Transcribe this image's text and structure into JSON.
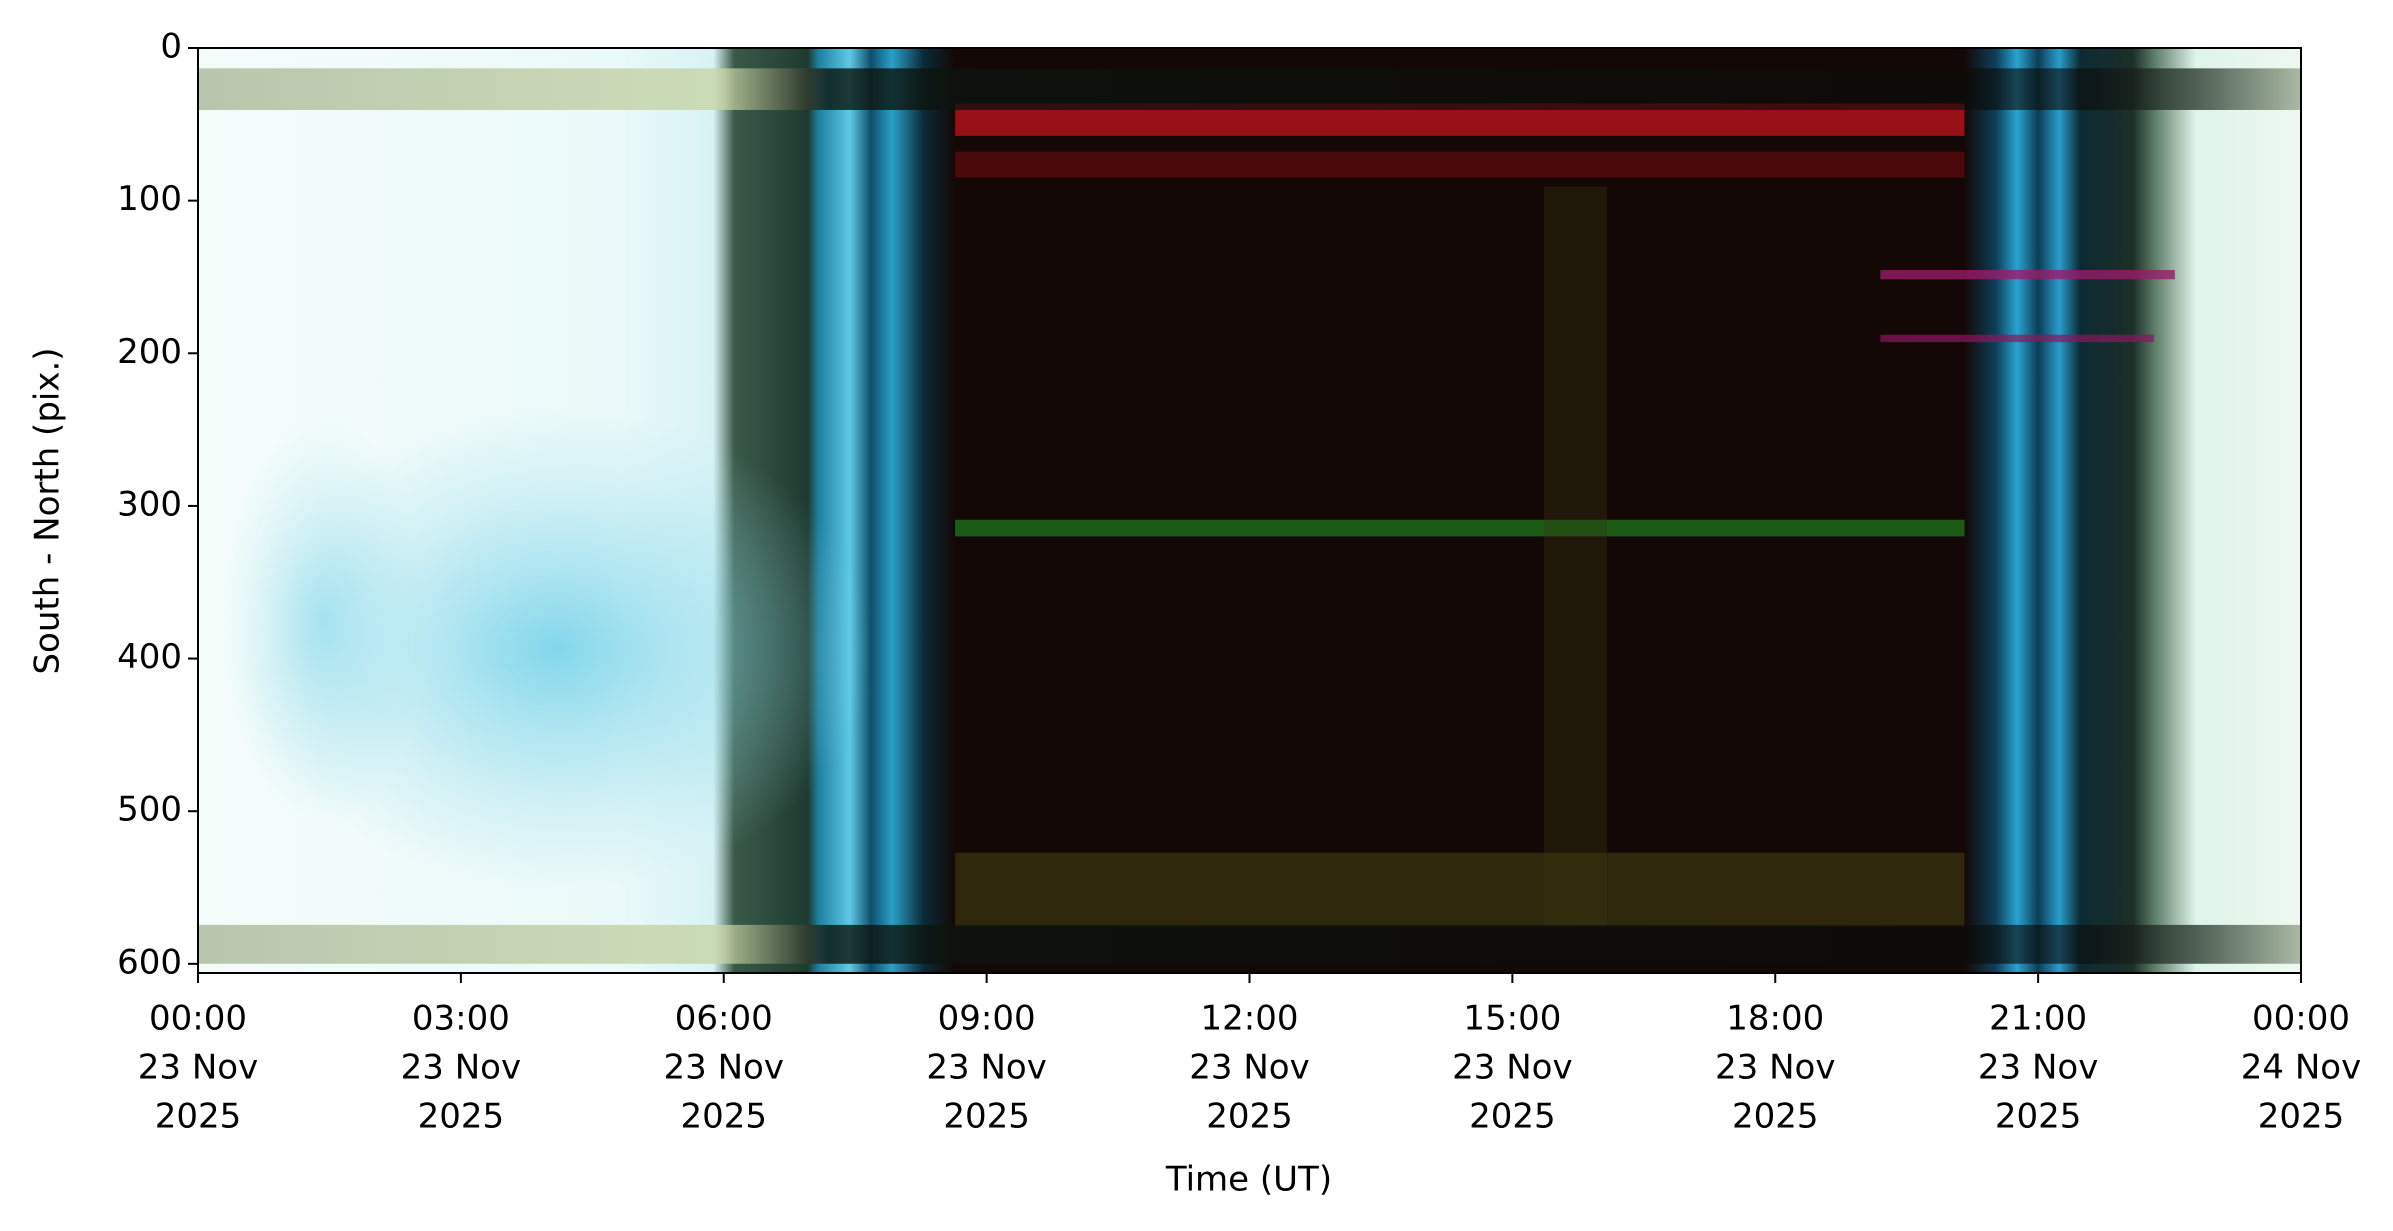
{
  "chart_data": {
    "type": "keogram",
    "ylabel": "South - North (pix.)",
    "xlabel": "Time (UT)",
    "ylim": [
      0,
      606
    ],
    "y_inverted": true,
    "yticks": [
      0,
      100,
      200,
      300,
      400,
      500,
      600
    ],
    "xlim": [
      "2025-11-23T00:00",
      "2025-11-24T00:00"
    ],
    "xticks": [
      {
        "value": "2025-11-23T00:00",
        "label": [
          "00:00",
          "23 Nov",
          "2025"
        ]
      },
      {
        "value": "2025-11-23T03:00",
        "label": [
          "03:00",
          "23 Nov",
          "2025"
        ]
      },
      {
        "value": "2025-11-23T06:00",
        "label": [
          "06:00",
          "23 Nov",
          "2025"
        ]
      },
      {
        "value": "2025-11-23T09:00",
        "label": [
          "09:00",
          "23 Nov",
          "2025"
        ]
      },
      {
        "value": "2025-11-23T12:00",
        "label": [
          "12:00",
          "23 Nov",
          "2025"
        ]
      },
      {
        "value": "2025-11-23T15:00",
        "label": [
          "15:00",
          "23 Nov",
          "2025"
        ]
      },
      {
        "value": "2025-11-23T18:00",
        "label": [
          "18:00",
          "23 Nov",
          "2025"
        ]
      },
      {
        "value": "2025-11-23T21:00",
        "label": [
          "21:00",
          "23 Nov",
          "2025"
        ]
      },
      {
        "value": "2025-11-24T00:00",
        "label": [
          "00:00",
          "24 Nov",
          "2025"
        ]
      }
    ]
  }
}
